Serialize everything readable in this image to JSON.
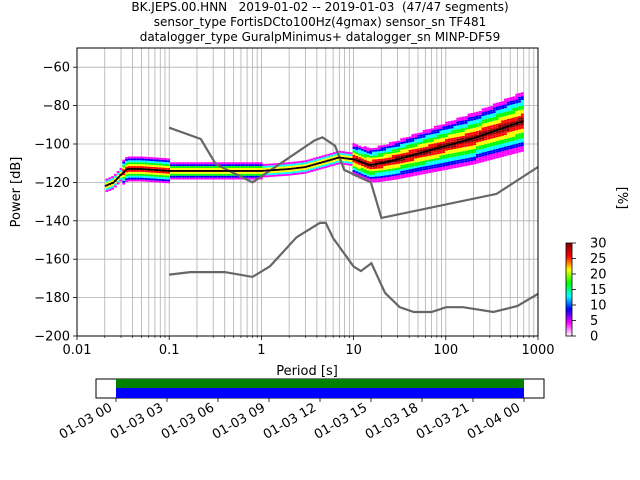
{
  "chart_data": [
    {
      "type": "heatmap",
      "title_lines": [
        "BK.JEPS.00.HNN   2019-01-02 -- 2019-01-03  (47/47 segments)",
        "sensor_type FortisDCto100Hz(4gmax) sensor_sn TF481",
        "datalogger_type GuralpMinimus+ datalogger_sn MINP-DF59"
      ],
      "xlabel": "Period [s]",
      "ylabel": "Power [dB]",
      "x_scale": "log",
      "xlim": [
        0.01,
        1000
      ],
      "ylim": [
        -200,
        -50
      ],
      "x_ticks": [
        {
          "v": 0.01,
          "label": "0.01"
        },
        {
          "v": 0.1,
          "label": "0.1"
        },
        {
          "v": 1,
          "label": "1"
        },
        {
          "v": 10,
          "label": "10"
        },
        {
          "v": 100,
          "label": "100"
        },
        {
          "v": 1000,
          "label": "1000"
        }
      ],
      "y_ticks": [
        -200,
        -180,
        -160,
        -140,
        -120,
        -100,
        -80,
        -60
      ],
      "grid": true,
      "colorbar": {
        "label": "[%]",
        "min": 0,
        "max": 30,
        "ticks": [
          0,
          5,
          10,
          15,
          20,
          25,
          30
        ],
        "colors": [
          "#ffffff",
          "#ff00ff",
          "#0000ff",
          "#00ffff",
          "#00ff00",
          "#ffff00",
          "#ff0000",
          "#800000"
        ]
      },
      "series": [
        {
          "role": "noise_model_high",
          "color": "#666666",
          "x": [
            0.1,
            0.22,
            0.32,
            0.8,
            3.8,
            4.6,
            6.3,
            7.9,
            15.4,
            20,
            354.8,
            1000
          ],
          "y": [
            -91.5,
            -97.4,
            -110.5,
            -120,
            -98,
            -96.5,
            -101,
            -113.5,
            -120,
            -138.5,
            -126,
            -112
          ]
        },
        {
          "role": "noise_model_low",
          "color": "#666666",
          "x": [
            0.1,
            0.17,
            0.4,
            0.8,
            1.24,
            2.4,
            4.3,
            5,
            6,
            10,
            12,
            15.6,
            21.9,
            31.6,
            45,
            70,
            101,
            154,
            328,
            600,
            1000
          ],
          "y": [
            -168,
            -166.7,
            -166.7,
            -169.2,
            -163.7,
            -148.6,
            -141.1,
            -141.1,
            -149,
            -163.8,
            -166.2,
            -162.1,
            -177.5,
            -185,
            -187.5,
            -187.5,
            -185,
            -185,
            -187.5,
            -184.4,
            -178
          ]
        },
        {
          "role": "mode",
          "color": "#000000",
          "x": [
            0.02,
            0.025,
            0.03,
            0.035,
            0.05,
            0.1,
            0.2,
            0.5,
            1,
            2,
            3,
            5,
            7,
            10,
            15,
            20,
            30,
            50,
            100,
            200,
            400,
            700
          ],
          "y": [
            -122,
            -120,
            -116,
            -113,
            -113,
            -114,
            -114,
            -114,
            -114,
            -113,
            -112,
            -109,
            -107,
            -108,
            -111,
            -110,
            -108,
            -105,
            -101,
            -97,
            -92,
            -88
          ]
        }
      ]
    },
    {
      "type": "timeline",
      "ticks": [
        "01-03 00",
        "01-03 03",
        "01-03 06",
        "01-03 09",
        "01-03 12",
        "01-03 15",
        "01-03 18",
        "01-03 21",
        "01-04 00"
      ],
      "bands": [
        {
          "color": "#008000"
        },
        {
          "color": "#0000ff"
        }
      ]
    }
  ]
}
